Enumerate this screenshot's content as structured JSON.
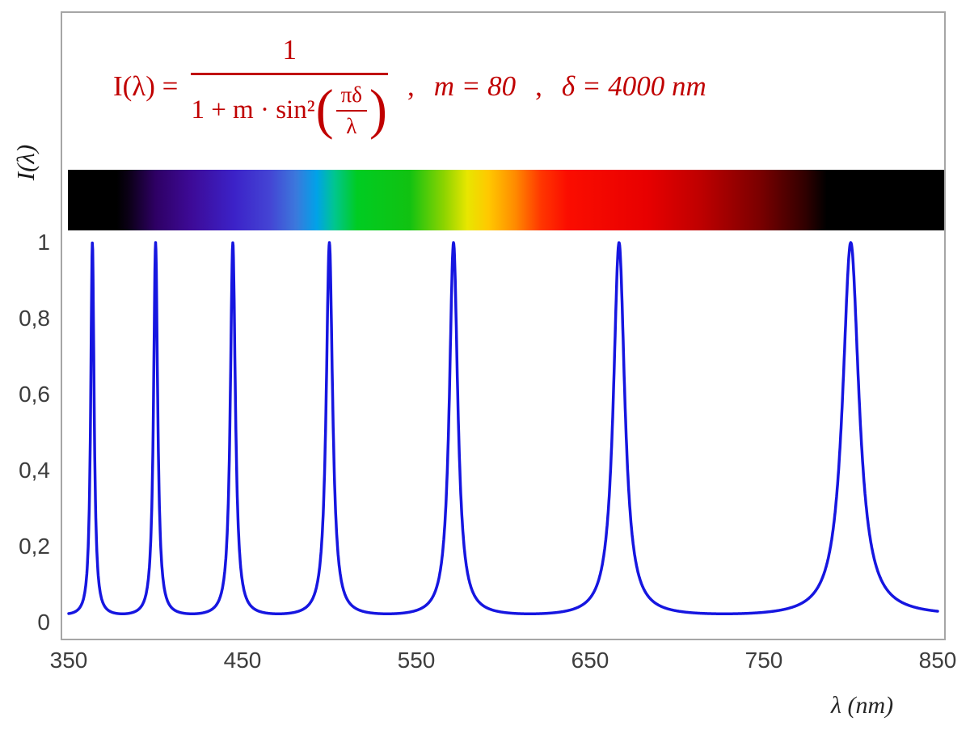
{
  "figure": {
    "background": "#ffffff",
    "border_color": "#a6a6a6"
  },
  "formula": {
    "color": "#c00000",
    "lhs": "I(λ) =",
    "numerator": "1",
    "denom_prefix": "1 + m · sin²",
    "open_paren": "(",
    "inner_numerator": "πδ",
    "inner_denominator": "λ",
    "comma1": ",",
    "param_m": "m = 80",
    "comma2": ",",
    "param_delta": "δ = 4000 nm",
    "close_paren": ")"
  },
  "axes": {
    "y_axis_label": "I(λ)",
    "x_axis_label": "λ  (nm)",
    "y_ticks": [
      "1",
      "0,8",
      "0,6",
      "0,4",
      "0,2",
      "0"
    ],
    "x_ticks": [
      "350",
      "450",
      "550",
      "650",
      "750",
      "850"
    ],
    "tick_color": "#3d3d3d"
  },
  "chart_data": {
    "type": "line",
    "title": "Fabry–Pérot / Airy transmission function with visible spectrum bar",
    "function": "I(λ) = 1 / (1 + m·sin²(πδ/λ))",
    "params": {
      "m": 80,
      "delta_nm": 4000
    },
    "x_range_nm": [
      350,
      850
    ],
    "ylim": [
      0,
      1
    ],
    "x_sample_step_nm": 0.2,
    "peak_wavelengths_nm": [
      363.64,
      400.0,
      444.44,
      500.0,
      571.43,
      666.67,
      800.0
    ],
    "peak_value": 1.0,
    "baseline_value": 0.0123,
    "grid": false,
    "legend": false,
    "series": [
      {
        "name": "I(λ)",
        "color": "#1616e0",
        "stroke_width": 3.5
      }
    ],
    "spectrum_bar": {
      "x_range_nm": [
        350,
        850
      ],
      "visible_range_nm": [
        380,
        780
      ],
      "stops": [
        {
          "pos": 0,
          "color": "#000000"
        },
        {
          "pos": 5.6,
          "color": "#000000"
        },
        {
          "pos": 7,
          "color": "#0c0018"
        },
        {
          "pos": 10,
          "color": "#2e0064"
        },
        {
          "pos": 14,
          "color": "#3d0a96"
        },
        {
          "pos": 19,
          "color": "#3c22c8"
        },
        {
          "pos": 23,
          "color": "#4444d4"
        },
        {
          "pos": 26,
          "color": "#3c78dc"
        },
        {
          "pos": 28.4,
          "color": "#00a2e8"
        },
        {
          "pos": 30.4,
          "color": "#00c690"
        },
        {
          "pos": 33,
          "color": "#00cc22"
        },
        {
          "pos": 39,
          "color": "#11c211"
        },
        {
          "pos": 43,
          "color": "#8fd400"
        },
        {
          "pos": 45.6,
          "color": "#e8e600"
        },
        {
          "pos": 48,
          "color": "#ffc800"
        },
        {
          "pos": 51,
          "color": "#ff8c00"
        },
        {
          "pos": 54,
          "color": "#ff3600"
        },
        {
          "pos": 57,
          "color": "#fb0d00"
        },
        {
          "pos": 66,
          "color": "#e80000"
        },
        {
          "pos": 72,
          "color": "#c00000"
        },
        {
          "pos": 79,
          "color": "#7a0000"
        },
        {
          "pos": 84,
          "color": "#330000"
        },
        {
          "pos": 86.6,
          "color": "#000000"
        },
        {
          "pos": 100,
          "color": "#000000"
        }
      ]
    }
  }
}
